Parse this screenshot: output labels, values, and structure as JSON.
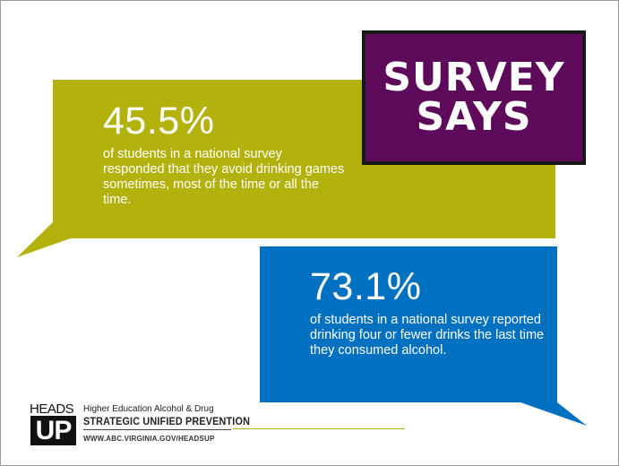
{
  "colors": {
    "green_bubble": "#b3b20c",
    "blue_bubble": "#0070c0",
    "survey_box": "#5e0a5a",
    "text": "#ffffff"
  },
  "survey_box": {
    "line1": "SURVEY",
    "line2": "SAYS"
  },
  "stat_green": {
    "percent": "45.5%",
    "description": "of students in a national survey responded that they avoid drinking games sometimes, most of the time or all the time."
  },
  "stat_blue": {
    "percent": "73.1%",
    "description": "of students in a national survey reported drinking four or fewer drinks the last time they consumed alcohol."
  },
  "logo": {
    "heads": "HEADS",
    "up": "UP",
    "tagline_line1": "Higher Education Alcohol & Drug",
    "tagline_line2": "STRATEGIC UNIFIED PREVENTION",
    "url": "WWW.ABC.VIRGINIA.GOV/HEADSUP"
  }
}
